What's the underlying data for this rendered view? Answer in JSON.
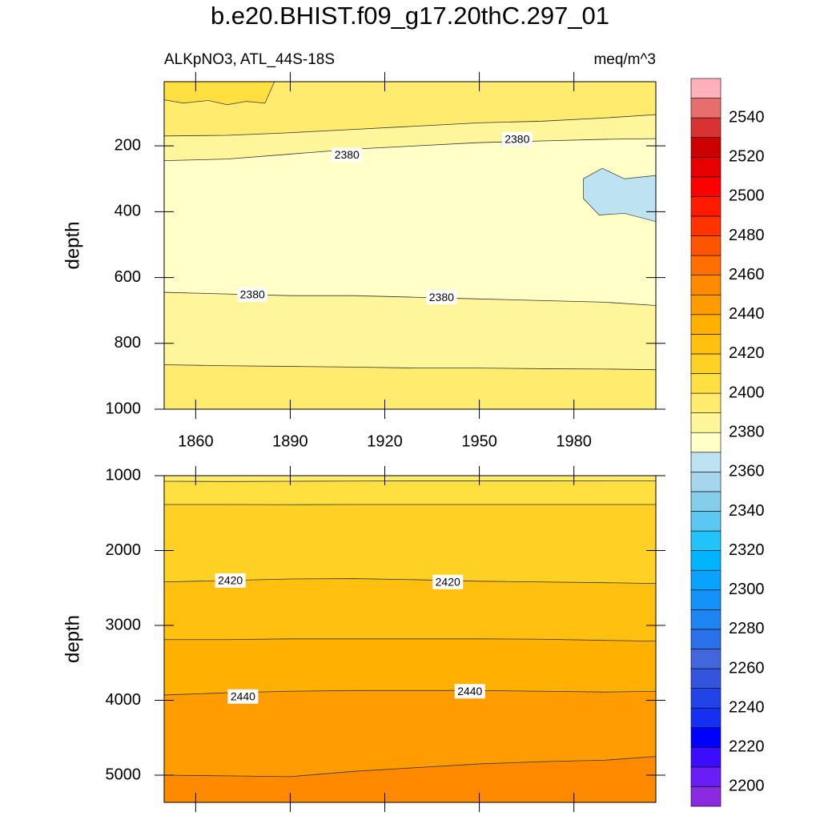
{
  "title": "b.e20.BHIST.f09_g17.20thC.297_01",
  "chart_data": [
    {
      "type": "contour",
      "left_string": "ALKpNO3, ATL_44S-18S",
      "right_string": "meq/m^3",
      "y_label": "depth",
      "xlim": [
        1850,
        2006
      ],
      "ylim": [
        5,
        1000
      ],
      "y_reversed": true,
      "xticks": [
        1860,
        1890,
        1920,
        1950,
        1980
      ],
      "show_xtick_labels": true,
      "yticks": [
        200,
        400,
        600,
        800,
        1000
      ],
      "x": [
        1850,
        1870,
        1890,
        1910,
        1930,
        1950,
        1970,
        1990,
        2006
      ],
      "bands": [
        {
          "level": 2390,
          "top": [
            5,
            5,
            5,
            5,
            5,
            5,
            5,
            5,
            5
          ]
        },
        {
          "level": 2380,
          "top": [
            170,
            168,
            160,
            150,
            140,
            130,
            125,
            115,
            105
          ]
        },
        {
          "level": 2370,
          "top": [
            245,
            240,
            225,
            210,
            200,
            190,
            185,
            180,
            178
          ]
        },
        {
          "level": 2380,
          "top": [
            645,
            650,
            655,
            655,
            660,
            665,
            670,
            675,
            685
          ]
        },
        {
          "level": 2390,
          "top": [
            865,
            868,
            870,
            872,
            875,
            875,
            877,
            878,
            880
          ]
        }
      ],
      "patches": [
        {
          "level": 2400,
          "x": [
            1850,
            1850,
            1856,
            1864,
            1870,
            1876,
            1882,
            1885
          ],
          "y": [
            5,
            60,
            70,
            62,
            75,
            65,
            70,
            5
          ]
        },
        {
          "level": 2360,
          "x": [
            2006,
            1996,
            1989,
            1983,
            1983,
            1988,
            1996,
            2006
          ],
          "y": [
            290,
            300,
            268,
            300,
            360,
            410,
            405,
            430
          ]
        }
      ],
      "contour_labels": [
        {
          "text": "2380",
          "x": 1908,
          "y": 227
        },
        {
          "text": "2380",
          "x": 1962,
          "y": 180
        },
        {
          "text": "2380",
          "x": 1878,
          "y": 652
        },
        {
          "text": "2380",
          "x": 1938,
          "y": 660
        }
      ]
    },
    {
      "type": "contour",
      "y_label": "depth",
      "xlim": [
        1850,
        2006
      ],
      "ylim": [
        1000,
        5364
      ],
      "y_reversed": true,
      "xticks": [
        1860,
        1890,
        1920,
        1950,
        1980
      ],
      "show_xtick_labels": false,
      "yticks": [
        1000,
        2000,
        3000,
        4000,
        5000
      ],
      "x": [
        1850,
        1870,
        1890,
        1910,
        1930,
        1950,
        1970,
        1990,
        2006
      ],
      "bands": [
        {
          "level": 2390,
          "top": [
            1000,
            1000,
            1000,
            1000,
            1000,
            1000,
            1000,
            1000,
            1000
          ]
        },
        {
          "level": 2400,
          "top": [
            1075,
            1078,
            1075,
            1072,
            1070,
            1070,
            1070,
            1068,
            1068
          ]
        },
        {
          "level": 2410,
          "top": [
            1385,
            1385,
            1388,
            1385,
            1385,
            1385,
            1385,
            1385,
            1385
          ]
        },
        {
          "level": 2420,
          "top": [
            2420,
            2400,
            2380,
            2375,
            2390,
            2410,
            2420,
            2430,
            2440
          ]
        },
        {
          "level": 2430,
          "top": [
            3190,
            3190,
            3180,
            3180,
            3180,
            3180,
            3185,
            3200,
            3210
          ]
        },
        {
          "level": 2440,
          "top": [
            3930,
            3900,
            3880,
            3870,
            3870,
            3870,
            3880,
            3890,
            3880
          ]
        },
        {
          "level": 2450,
          "top": [
            5000,
            5010,
            5020,
            4950,
            4900,
            4850,
            4820,
            4800,
            4750
          ]
        }
      ],
      "patches": [],
      "contour_labels": [
        {
          "text": "2420",
          "x": 1871,
          "y": 2400
        },
        {
          "text": "2420",
          "x": 1940,
          "y": 2420
        },
        {
          "text": "2440",
          "x": 1875,
          "y": 3950
        },
        {
          "text": "2440",
          "x": 1947,
          "y": 3880
        }
      ]
    },
    {
      "type": "colorbar",
      "levels": [
        2190,
        2200,
        2210,
        2220,
        2230,
        2240,
        2250,
        2260,
        2270,
        2280,
        2290,
        2300,
        2310,
        2320,
        2330,
        2340,
        2350,
        2360,
        2370,
        2380,
        2390,
        2400,
        2410,
        2420,
        2430,
        2440,
        2450,
        2460,
        2470,
        2480,
        2490,
        2500,
        2510,
        2520,
        2530,
        2540,
        2550,
        2560
      ],
      "colors": [
        "#8a2be2",
        "#6a1ef5",
        "#3c0cff",
        "#0000ff",
        "#1530f0",
        "#2244e6",
        "#3355dd",
        "#4466dd",
        "#2a70e8",
        "#1e84f2",
        "#1492fa",
        "#0aa2ff",
        "#00b4ff",
        "#22c2fa",
        "#5cc8f2",
        "#86cdec",
        "#a6d6ee",
        "#bde2f1",
        "#ffffc8",
        "#fff59a",
        "#ffeb6e",
        "#ffe040",
        "#ffd122",
        "#ffc010",
        "#ffb000",
        "#ff9c00",
        "#ff8a00",
        "#ff6e00",
        "#ff5400",
        "#ff3200",
        "#ff1a00",
        "#ff0000",
        "#e80000",
        "#cc0000",
        "#d83232",
        "#e86e6e",
        "#ffb0b8"
      ],
      "ticks": [
        2200,
        2220,
        2240,
        2260,
        2280,
        2300,
        2320,
        2340,
        2360,
        2380,
        2400,
        2420,
        2440,
        2460,
        2480,
        2500,
        2520,
        2540
      ]
    }
  ]
}
